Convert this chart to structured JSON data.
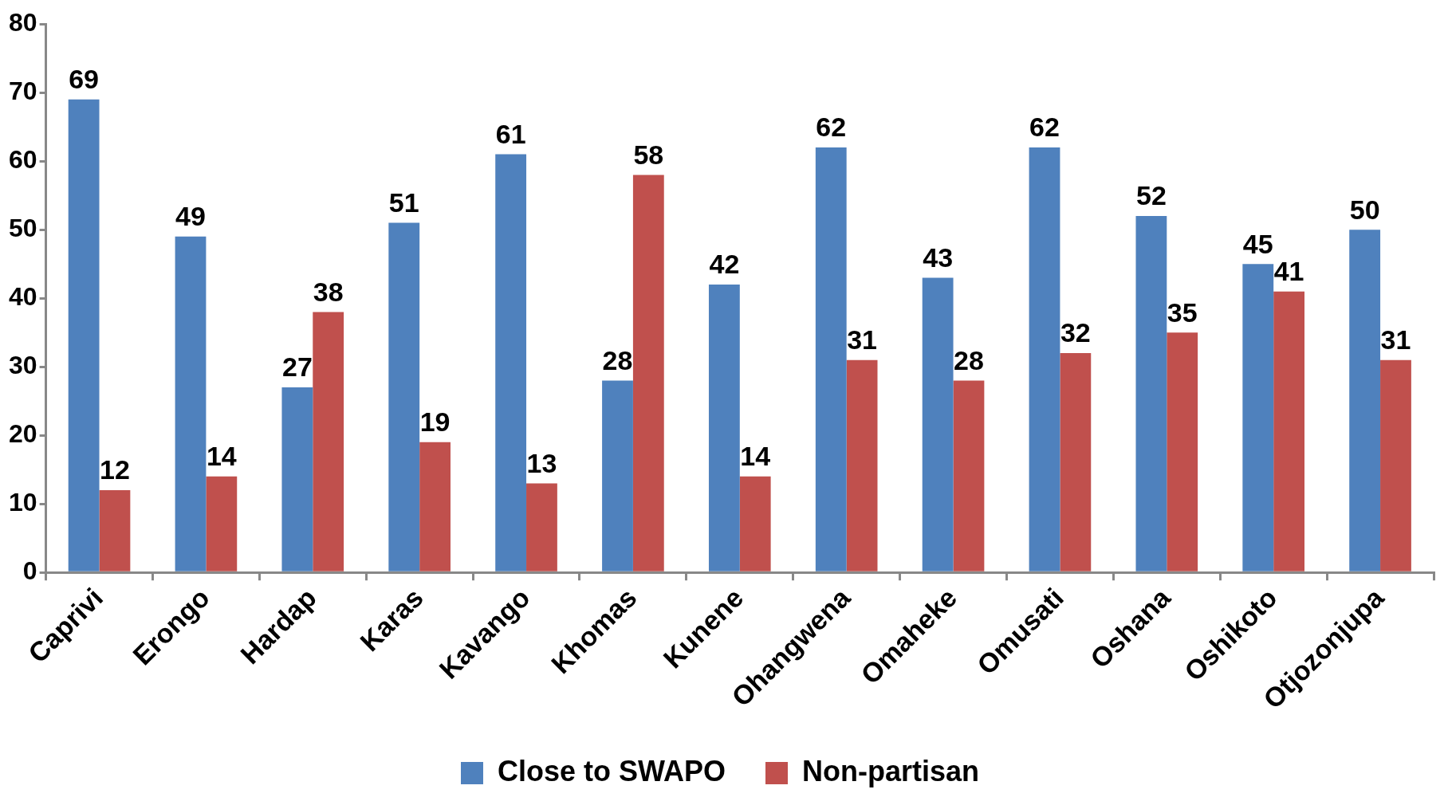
{
  "chart_data": {
    "type": "bar",
    "categories": [
      "Caprivi",
      "Erongo",
      "Hardap",
      "Karas",
      "Kavango",
      "Khomas",
      "Kunene",
      "Ohangwena",
      "Omaheke",
      "Omusati",
      "Oshana",
      "Oshikoto",
      "Otjozonjupa"
    ],
    "series": [
      {
        "name": "Close to SWAPO",
        "color": "#4f81bd",
        "values": [
          69,
          49,
          27,
          51,
          61,
          28,
          42,
          62,
          43,
          62,
          52,
          45,
          50
        ]
      },
      {
        "name": "Non-partisan",
        "color": "#c0504d",
        "values": [
          12,
          14,
          38,
          19,
          13,
          58,
          14,
          31,
          28,
          32,
          35,
          41,
          31
        ]
      }
    ],
    "ylim": [
      0,
      80
    ],
    "yticks": [
      0,
      10,
      20,
      30,
      40,
      50,
      60,
      70,
      80
    ],
    "grid": false,
    "legend": "bottom",
    "data_labels": true
  }
}
